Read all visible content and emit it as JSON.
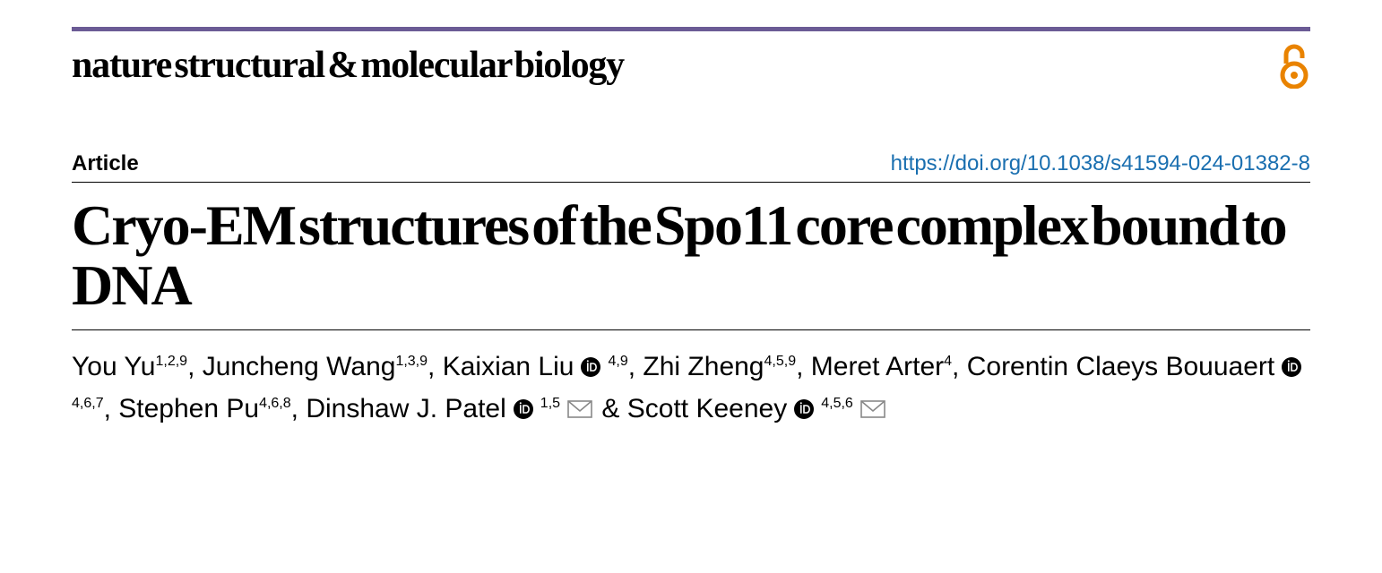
{
  "journal": {
    "name": "nature structural & molecular biology"
  },
  "header": {
    "article_label": "Article",
    "doi": "https://doi.org/10.1038/s41594-024-01382-8"
  },
  "title": "Cryo-EM structures of the Spo11 core complex bound to DNA",
  "authors": [
    {
      "name": "You Yu",
      "affil": "1,2,9",
      "orcid": false,
      "mail": false,
      "sep": ", "
    },
    {
      "name": "Juncheng Wang",
      "affil": "1,3,9",
      "orcid": false,
      "mail": false,
      "sep": ", "
    },
    {
      "name": "Kaixian Liu",
      "affil": "4,9",
      "orcid": true,
      "mail": false,
      "sep": ", "
    },
    {
      "name": "Zhi Zheng",
      "affil": "4,5,9",
      "orcid": false,
      "mail": false,
      "sep": ", "
    },
    {
      "name": "Meret Arter",
      "affil": "4",
      "orcid": false,
      "mail": false,
      "sep": ", "
    },
    {
      "name": "Corentin Claeys Bouuaert",
      "affil": "4,6,7",
      "orcid": true,
      "mail": false,
      "sep": ", "
    },
    {
      "name": "Stephen Pu",
      "affil": "4,6,8",
      "orcid": false,
      "mail": false,
      "sep": ", "
    },
    {
      "name": "Dinshaw J. Patel",
      "affil": "1,5",
      "orcid": true,
      "mail": true,
      "sep": " & "
    },
    {
      "name": "Scott Keeney",
      "affil": "4,5,6",
      "orcid": true,
      "mail": true,
      "sep": ""
    }
  ],
  "colors": {
    "top_rule": "#6b5b95",
    "oa_icon": "#e98300",
    "doi_link": "#1a6fb0",
    "text": "#000000",
    "mail_stroke": "#888888"
  }
}
